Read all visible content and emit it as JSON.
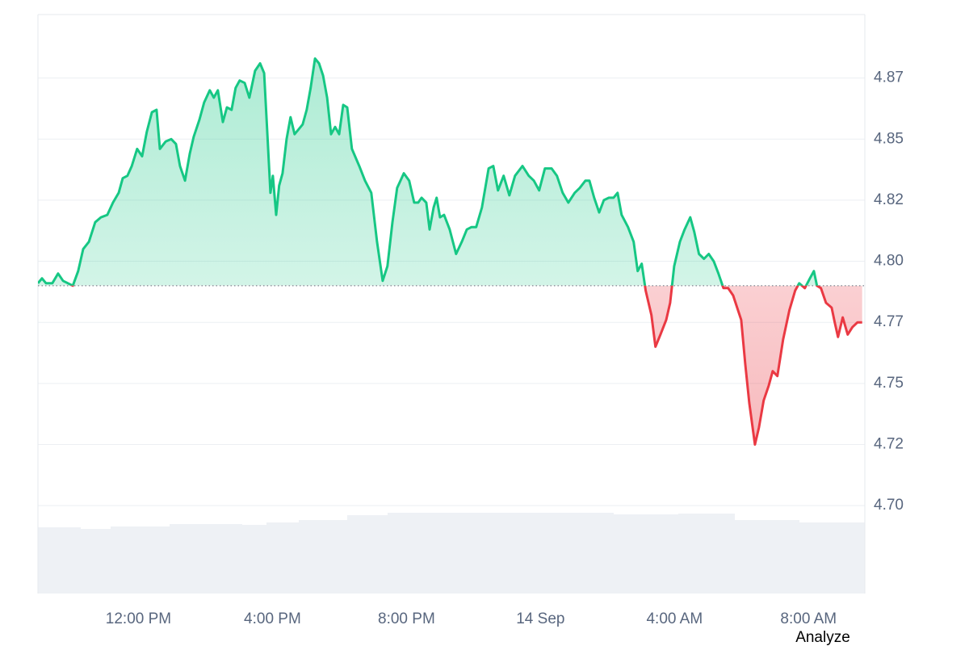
{
  "chart_data": {
    "type": "line",
    "x": [
      9.0,
      9.12,
      9.24,
      9.43,
      9.6,
      9.75,
      10.04,
      10.2,
      10.35,
      10.52,
      10.71,
      10.88,
      11.07,
      11.24,
      11.41,
      11.53,
      11.67,
      11.8,
      11.96,
      12.11,
      12.25,
      12.4,
      12.54,
      12.64,
      12.81,
      12.98,
      13.12,
      13.24,
      13.39,
      13.53,
      13.65,
      13.82,
      13.96,
      14.13,
      14.25,
      14.37,
      14.52,
      14.64,
      14.78,
      14.9,
      15.02,
      15.17,
      15.31,
      15.48,
      15.63,
      15.75,
      15.84,
      15.94,
      16.01,
      16.11,
      16.2,
      16.3,
      16.42,
      16.54,
      16.66,
      16.78,
      16.9,
      17.02,
      17.14,
      17.27,
      17.39,
      17.51,
      17.63,
      17.75,
      17.87,
      17.99,
      18.11,
      18.23,
      18.37,
      18.59,
      18.76,
      18.95,
      19.12,
      19.29,
      19.43,
      19.58,
      19.72,
      19.92,
      20.08,
      20.23,
      20.35,
      20.45,
      20.59,
      20.69,
      20.81,
      20.9,
      21.0,
      21.12,
      21.29,
      21.48,
      21.65,
      21.8,
      21.94,
      22.08,
      22.25,
      22.45,
      22.59,
      22.73,
      22.9,
      23.07,
      23.24,
      23.46,
      23.65,
      23.8,
      23.96,
      24.13,
      24.33,
      24.49,
      24.66,
      24.83,
      25.02,
      25.17,
      25.34,
      25.46,
      25.6,
      25.75,
      25.89,
      26.04,
      26.18,
      26.3,
      26.42,
      26.61,
      26.78,
      26.9,
      27.02,
      27.14,
      27.31,
      27.43,
      27.58,
      27.75,
      27.87,
      27.99,
      28.16,
      28.3,
      28.47,
      28.59,
      28.73,
      28.88,
      29.02,
      29.17,
      29.31,
      29.46,
      29.6,
      29.75,
      29.87,
      29.99,
      30.11,
      30.23,
      30.4,
      30.52,
      30.66,
      30.81,
      30.93,
      31.07,
      31.24,
      31.43,
      31.6,
      31.72,
      31.89,
      32.04,
      32.16,
      32.25,
      32.37,
      32.52,
      32.69,
      32.78,
      32.88,
      33.02,
      33.17,
      33.31,
      33.46,
      33.6
    ],
    "values": [
      4.791,
      4.793,
      4.791,
      4.791,
      4.795,
      4.792,
      4.79,
      4.796,
      4.805,
      4.808,
      4.816,
      4.818,
      4.819,
      4.824,
      4.828,
      4.834,
      4.835,
      4.839,
      4.846,
      4.843,
      4.853,
      4.861,
      4.862,
      4.846,
      4.849,
      4.85,
      4.848,
      4.839,
      4.833,
      4.844,
      4.851,
      4.858,
      4.865,
      4.87,
      4.867,
      4.87,
      4.857,
      4.863,
      4.862,
      4.871,
      4.874,
      4.873,
      4.867,
      4.878,
      4.881,
      4.877,
      4.854,
      4.828,
      4.835,
      4.819,
      4.831,
      4.836,
      4.85,
      4.859,
      4.852,
      4.854,
      4.856,
      4.862,
      4.871,
      4.883,
      4.881,
      4.876,
      4.867,
      4.852,
      4.855,
      4.852,
      4.864,
      4.863,
      4.846,
      4.839,
      4.833,
      4.828,
      4.808,
      4.792,
      4.798,
      4.816,
      4.83,
      4.836,
      4.833,
      4.824,
      4.824,
      4.826,
      4.824,
      4.813,
      4.822,
      4.826,
      4.818,
      4.819,
      4.813,
      4.803,
      4.808,
      4.813,
      4.814,
      4.814,
      4.822,
      4.838,
      4.839,
      4.829,
      4.835,
      4.827,
      4.835,
      4.839,
      4.835,
      4.833,
      4.829,
      4.838,
      4.838,
      4.835,
      4.828,
      4.824,
      4.828,
      4.83,
      4.833,
      4.833,
      4.826,
      4.82,
      4.825,
      4.826,
      4.826,
      4.828,
      4.819,
      4.814,
      4.808,
      4.796,
      4.799,
      4.788,
      4.778,
      4.765,
      4.77,
      4.776,
      4.783,
      4.798,
      4.808,
      4.813,
      4.818,
      4.812,
      4.803,
      4.801,
      4.803,
      4.8,
      4.795,
      4.789,
      4.789,
      4.786,
      4.781,
      4.776,
      4.758,
      4.742,
      4.725,
      4.732,
      4.743,
      4.749,
      4.755,
      4.753,
      4.768,
      4.78,
      4.788,
      4.791,
      4.789,
      4.793,
      4.796,
      4.79,
      4.789,
      4.783,
      4.781,
      4.775,
      4.769,
      4.777,
      4.77,
      4.773,
      4.775,
      4.775
    ],
    "baseline": 4.79,
    "color_up": "#16c784",
    "color_down": "#ea3943",
    "xlim": [
      9,
      33.68
    ],
    "xticks": [
      {
        "value": 12,
        "label": "12:00 PM"
      },
      {
        "value": 16,
        "label": "4:00 PM"
      },
      {
        "value": 20,
        "label": "8:00 PM"
      },
      {
        "value": 24,
        "label": "14 Sep"
      },
      {
        "value": 28,
        "label": "4:00 AM"
      },
      {
        "value": 32,
        "label": "8:00 AM"
      }
    ],
    "ylim": [
      4.664,
      4.901
    ],
    "yticks": [
      {
        "value": 4.875,
        "label": "4.87"
      },
      {
        "value": 4.85,
        "label": "4.85"
      },
      {
        "value": 4.825,
        "label": "4.82"
      },
      {
        "value": 4.8,
        "label": "4.80"
      },
      {
        "value": 4.775,
        "label": "4.77"
      },
      {
        "value": 4.75,
        "label": "4.75"
      },
      {
        "value": 4.725,
        "label": "4.72"
      },
      {
        "value": 4.7,
        "label": "4.70"
      }
    ],
    "grid": true
  },
  "button": {
    "label": "Analyze"
  }
}
